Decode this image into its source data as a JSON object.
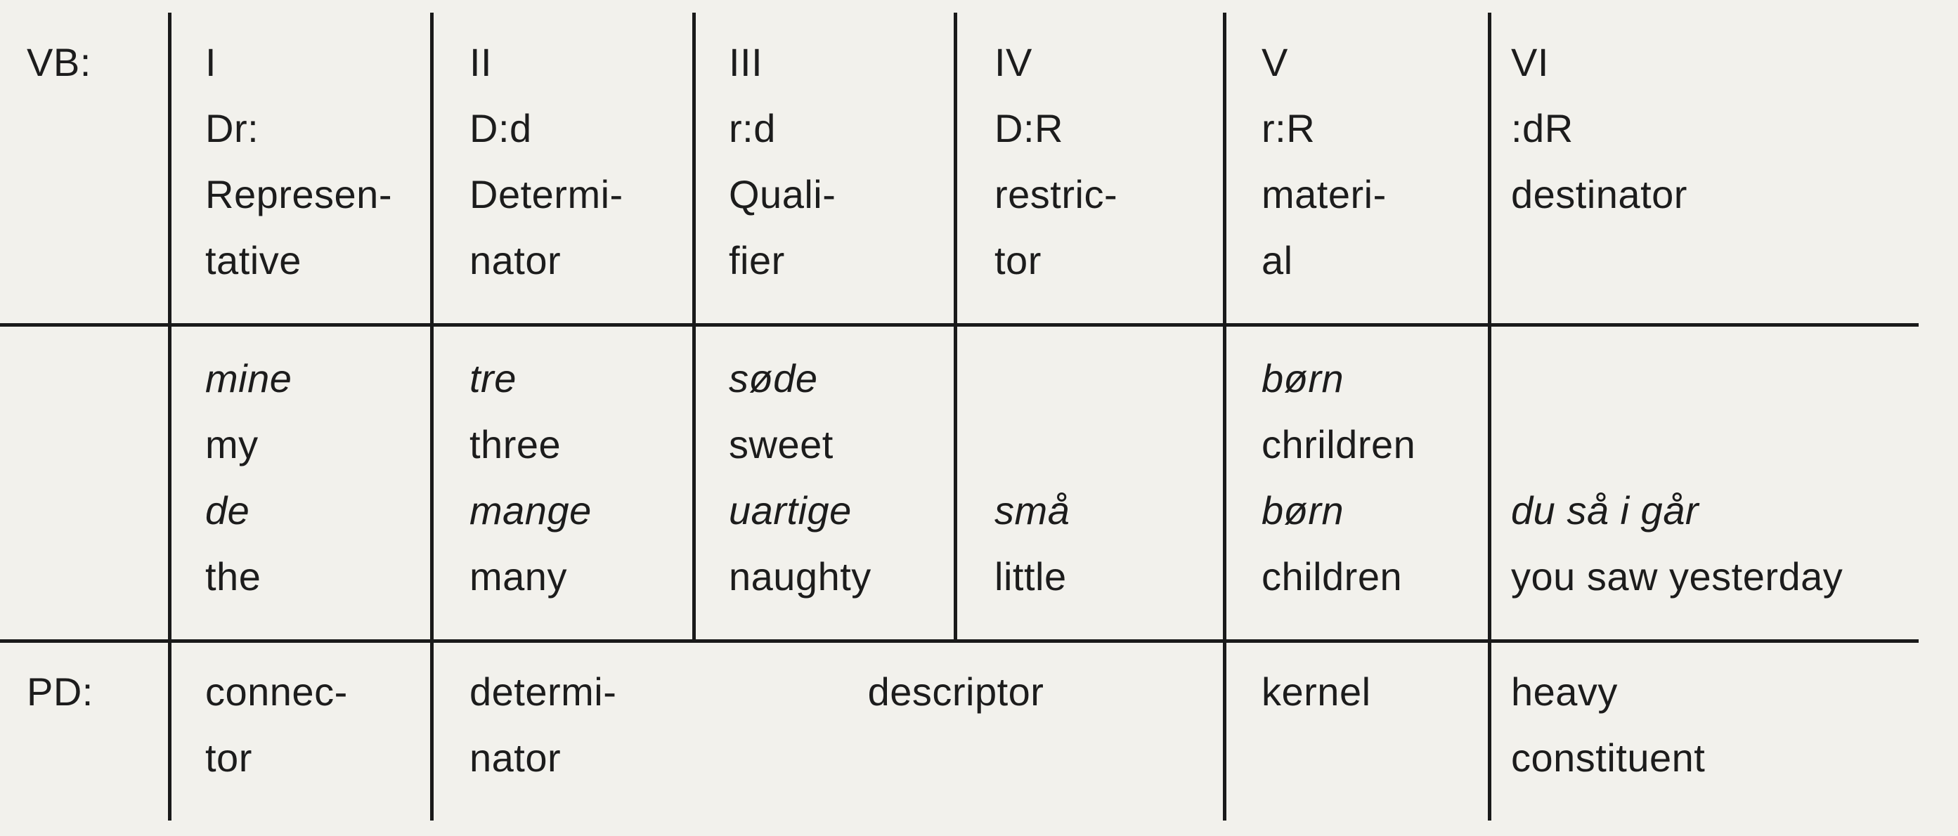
{
  "header": {
    "row_label": "VB:",
    "columns": [
      {
        "numeral": "I",
        "code": "Dr:",
        "name_lines": [
          "Represen-",
          "tative"
        ]
      },
      {
        "numeral": "II",
        "code": "D:d",
        "name_lines": [
          "Determi-",
          "nator"
        ]
      },
      {
        "numeral": "III",
        "code": "r:d",
        "name_lines": [
          "Quali-",
          "fier"
        ]
      },
      {
        "numeral": "IV",
        "code": "D:R",
        "name_lines": [
          "restric-",
          "tor"
        ]
      },
      {
        "numeral": "V",
        "code": "r:R",
        "name_lines": [
          "materi-",
          "al"
        ]
      },
      {
        "numeral": "VI",
        "code": ":dR",
        "name_lines": [
          "destinator"
        ]
      }
    ]
  },
  "examples": {
    "col1": [
      "mine",
      "my",
      "de",
      "the"
    ],
    "col2": [
      "tre",
      "three",
      "mange",
      "many"
    ],
    "col3": [
      "søde",
      "sweet",
      "uartige",
      "naughty"
    ],
    "col4": [
      "små",
      "little"
    ],
    "col5": [
      "børn",
      "chrildren",
      "børn",
      "children"
    ],
    "col6": [
      "du så i går",
      "you saw yesterday"
    ]
  },
  "footer": {
    "row_label": "PD:",
    "col1_lines": [
      "connec-",
      "tor"
    ],
    "col2_lines": [
      "determi-",
      "nator"
    ],
    "col34": "descriptor",
    "col5": "kernel",
    "col6_lines": [
      "heavy",
      "constituent"
    ]
  }
}
